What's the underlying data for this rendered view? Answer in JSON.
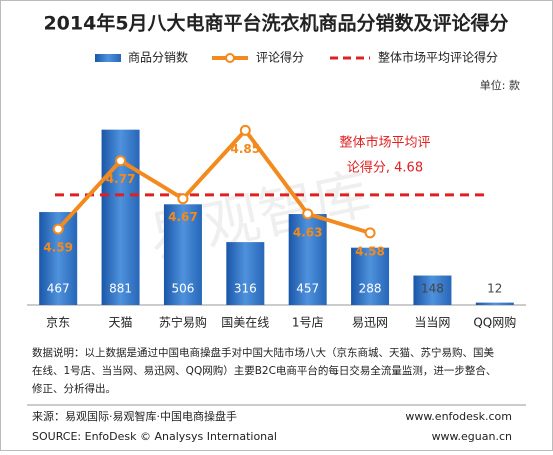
{
  "chart_data": {
    "type": "bar",
    "title": "2014年5月八大电商平台洗衣机商品分销数及评论得分",
    "unit": "单位: 款",
    "categories": [
      "京东",
      "天猫",
      "苏宁易购",
      "国美在线",
      "1号店",
      "易迅网",
      "当当网",
      "QQ网购"
    ],
    "series": [
      {
        "name": "商品分销数",
        "type": "bar",
        "color": "#2a6fc4",
        "values": [
          467,
          881,
          506,
          316,
          457,
          288,
          148,
          12
        ]
      },
      {
        "name": "评论得分",
        "type": "line",
        "axis": "y2",
        "color": "#f28a1e",
        "values": [
          4.59,
          4.77,
          4.67,
          4.85,
          4.63,
          4.58,
          null,
          null
        ]
      }
    ],
    "average": {
      "name": "整体市场平均评论得分",
      "value": 4.68,
      "color": "#e02020"
    },
    "annotation": [
      "整体市场平均评",
      "论得分, 4.68"
    ],
    "ylim": [
      0,
      1030
    ],
    "y2lim": [
      4.39,
      4.93
    ],
    "watermark": "易观智库",
    "note": [
      "数据说明：以上数据是通过中国电商操盘手对中国大陆市场八大（京东商城、天猫、苏宁易购、国美",
      "在线、1号店、当当网、易迅网、QQ网购）主要B2C电商平台的每日交易全流量监测，进一步整合、",
      "修正、分析得出。"
    ],
    "source": [
      "来源：易观国际·易观智库·中国电商操盘手",
      "SOURCE: EnfoDesk © Analysys International"
    ],
    "urls": [
      "www.enfodesk.com",
      "www.eguan.cn"
    ]
  }
}
